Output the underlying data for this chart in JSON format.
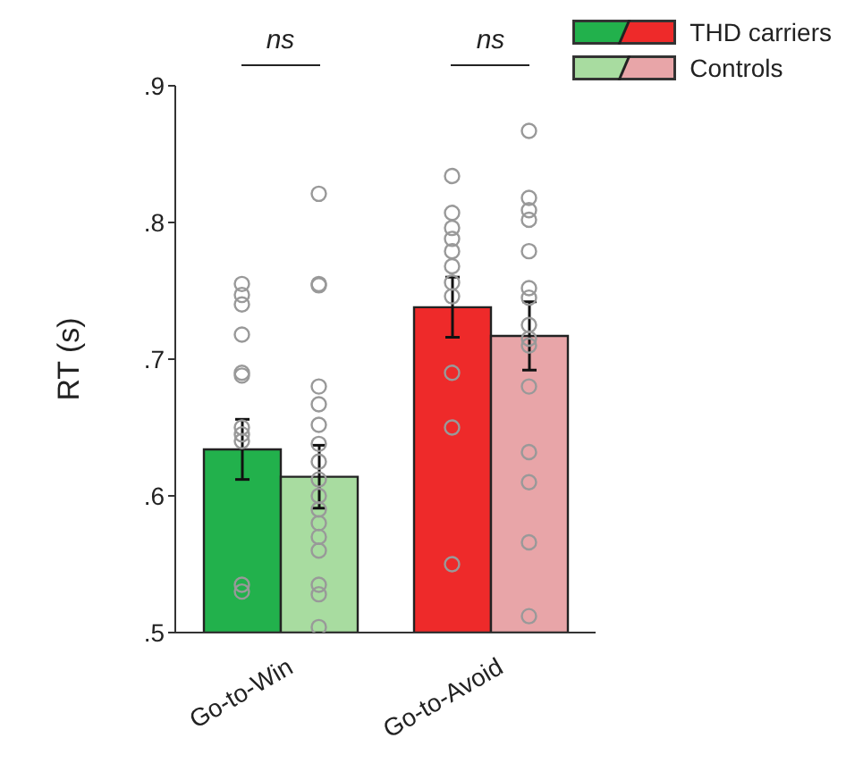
{
  "chart_data": {
    "type": "bar",
    "categories": [
      "Go-to-Win",
      "Go-to-Avoid"
    ],
    "ylabel": "RT (s)",
    "ylim": [
      0.5,
      0.9
    ],
    "yticks": [
      {
        "value": 0.5,
        "label": ".5"
      },
      {
        "value": 0.6,
        "label": ".6"
      },
      {
        "value": 0.7,
        "label": ".7"
      },
      {
        "value": 0.8,
        "label": ".8"
      },
      {
        "value": 0.9,
        "label": ".9"
      }
    ],
    "legend": "top right",
    "grid": false,
    "annotations": [
      "ns",
      "ns"
    ],
    "series": [
      {
        "name": "THD carriers",
        "color": "#22b14c",
        "colors": [
          "#22b14c",
          "#ee2a2a"
        ],
        "values": [
          0.634,
          0.738
        ],
        "errors": [
          0.022,
          0.022
        ]
      },
      {
        "name": "Controls",
        "color": "#a8dca0",
        "colors": [
          "#a8dca0",
          "#e8a5a8"
        ],
        "values": [
          0.614,
          0.717
        ],
        "errors": [
          0.023,
          0.025
        ]
      },
      {
        "type": "scatter",
        "color": "#999999",
        "marker": "circle",
        "x": [
          "Go-to-Win",
          "Go-to-Win",
          "Go-to-Win",
          "Go-to-Win",
          "Go-to-Win",
          "Go-to-Win",
          "Go-to-Win",
          "Go-to-Win",
          "Go-to-Win",
          "Go-to-Win",
          "Go-to-Win",
          "Go-to-Avoid",
          "Go-to-Avoid",
          "Go-to-Avoid",
          "Go-to-Avoid",
          "Go-to-Avoid",
          "Go-to-Avoid",
          "Go-to-Avoid",
          "Go-to-Avoid",
          "Go-to-Avoid",
          "Go-to-Avoid",
          "Go-to-Avoid"
        ],
        "values": [
          0.755,
          0.747,
          0.74,
          0.718,
          0.69,
          0.688,
          0.65,
          0.645,
          0.64,
          0.535,
          0.53,
          0.834,
          0.807,
          0.796,
          0.788,
          0.779,
          0.768,
          0.756,
          0.746,
          0.69,
          0.65,
          0.55
        ]
      },
      {
        "type": "scatter",
        "color": "#999999",
        "marker": "circle",
        "x": [
          "Go-to-Win",
          "Go-to-Win",
          "Go-to-Win",
          "Go-to-Win",
          "Go-to-Win",
          "Go-to-Win",
          "Go-to-Win",
          "Go-to-Win",
          "Go-to-Win",
          "Go-to-Win",
          "Go-to-Win",
          "Go-to-Win",
          "Go-to-Win",
          "Go-to-Win",
          "Go-to-Win",
          "Go-to-Win",
          "Go-to-Win",
          "Go-to-Avoid",
          "Go-to-Avoid",
          "Go-to-Avoid",
          "Go-to-Avoid",
          "Go-to-Avoid",
          "Go-to-Avoid",
          "Go-to-Avoid",
          "Go-to-Avoid",
          "Go-to-Avoid",
          "Go-to-Avoid",
          "Go-to-Avoid",
          "Go-to-Avoid",
          "Go-to-Avoid",
          "Go-to-Avoid",
          "Go-to-Avoid"
        ],
        "values": [
          0.821,
          0.755,
          0.754,
          0.68,
          0.667,
          0.652,
          0.638,
          0.625,
          0.612,
          0.6,
          0.59,
          0.58,
          0.57,
          0.56,
          0.535,
          0.528,
          0.504,
          0.867,
          0.818,
          0.809,
          0.802,
          0.779,
          0.752,
          0.745,
          0.725,
          0.715,
          0.71,
          0.68,
          0.632,
          0.61,
          0.566,
          0.512
        ]
      }
    ]
  }
}
